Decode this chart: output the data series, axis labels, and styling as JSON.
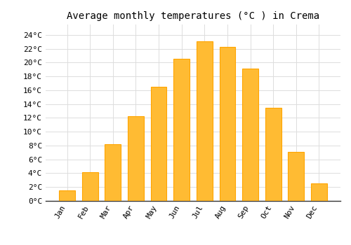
{
  "title": "Average monthly temperatures (°C ) in Crema",
  "months": [
    "Jan",
    "Feb",
    "Mar",
    "Apr",
    "May",
    "Jun",
    "Jul",
    "Aug",
    "Sep",
    "Oct",
    "Nov",
    "Dec"
  ],
  "values": [
    1.5,
    4.1,
    8.2,
    12.2,
    16.5,
    20.5,
    23.1,
    22.3,
    19.1,
    13.5,
    7.1,
    2.5
  ],
  "bar_color": "#FFBB33",
  "bar_edge_color": "#FFA500",
  "bar_edge_width": 0.8,
  "yticks": [
    0,
    2,
    4,
    6,
    8,
    10,
    12,
    14,
    16,
    18,
    20,
    22,
    24
  ],
  "ylim": [
    0,
    25.5
  ],
  "background_color": "#FFFFFF",
  "grid_color": "#DDDDDD",
  "title_fontsize": 10,
  "tick_fontsize": 8,
  "font_family": "monospace",
  "bar_width": 0.7
}
